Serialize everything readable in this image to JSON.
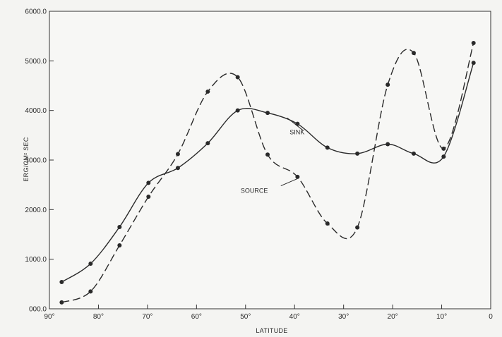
{
  "chart_data": {
    "type": "line",
    "title": "",
    "xlabel": "LATITUDE",
    "ylabel": "ERG/CM² SEC",
    "xlim": [
      90,
      0
    ],
    "ylim": [
      0,
      6000
    ],
    "x_ticks": [
      {
        "value": 90,
        "label": "90°"
      },
      {
        "value": 80,
        "label": "80°"
      },
      {
        "value": 70,
        "label": "70°"
      },
      {
        "value": 60,
        "label": "60°"
      },
      {
        "value": 50,
        "label": "50°"
      },
      {
        "value": 40,
        "label": "40°"
      },
      {
        "value": 30,
        "label": "30°"
      },
      {
        "value": 20,
        "label": "20°"
      },
      {
        "value": 10,
        "label": "10°"
      },
      {
        "value": 0,
        "label": "0"
      }
    ],
    "y_ticks": [
      {
        "value": 0,
        "label": "000.0"
      },
      {
        "value": 1000,
        "label": "1000.0"
      },
      {
        "value": 2000,
        "label": "2000.0"
      },
      {
        "value": 3000,
        "label": "3000.0"
      },
      {
        "value": 4000,
        "label": "4000.0"
      },
      {
        "value": 5000,
        "label": "5000.0"
      },
      {
        "value": 6000,
        "label": "6000.0"
      }
    ],
    "grid": false,
    "series": [
      {
        "name": "SINK",
        "style": "solid",
        "color": "#2a2a2a",
        "x": [
          87.5,
          81.6,
          75.7,
          69.8,
          63.8,
          57.7,
          51.6,
          45.5,
          39.4,
          33.3,
          27.2,
          21.0,
          15.7,
          9.6,
          3.5
        ],
        "y": [
          540,
          910,
          1650,
          2540,
          2840,
          3340,
          4000,
          3950,
          3730,
          3250,
          3130,
          3320,
          3130,
          3070,
          4960
        ]
      },
      {
        "name": "SOURCE",
        "style": "dashed",
        "color": "#2a2a2a",
        "x": [
          87.5,
          81.6,
          75.7,
          69.8,
          63.8,
          57.7,
          51.6,
          45.5,
          39.4,
          33.3,
          27.2,
          21.0,
          15.7,
          9.6,
          3.5
        ],
        "y": [
          130,
          350,
          1280,
          2260,
          3120,
          4380,
          4670,
          3110,
          2660,
          1720,
          1640,
          4520,
          5160,
          3230,
          5360
        ]
      }
    ]
  }
}
